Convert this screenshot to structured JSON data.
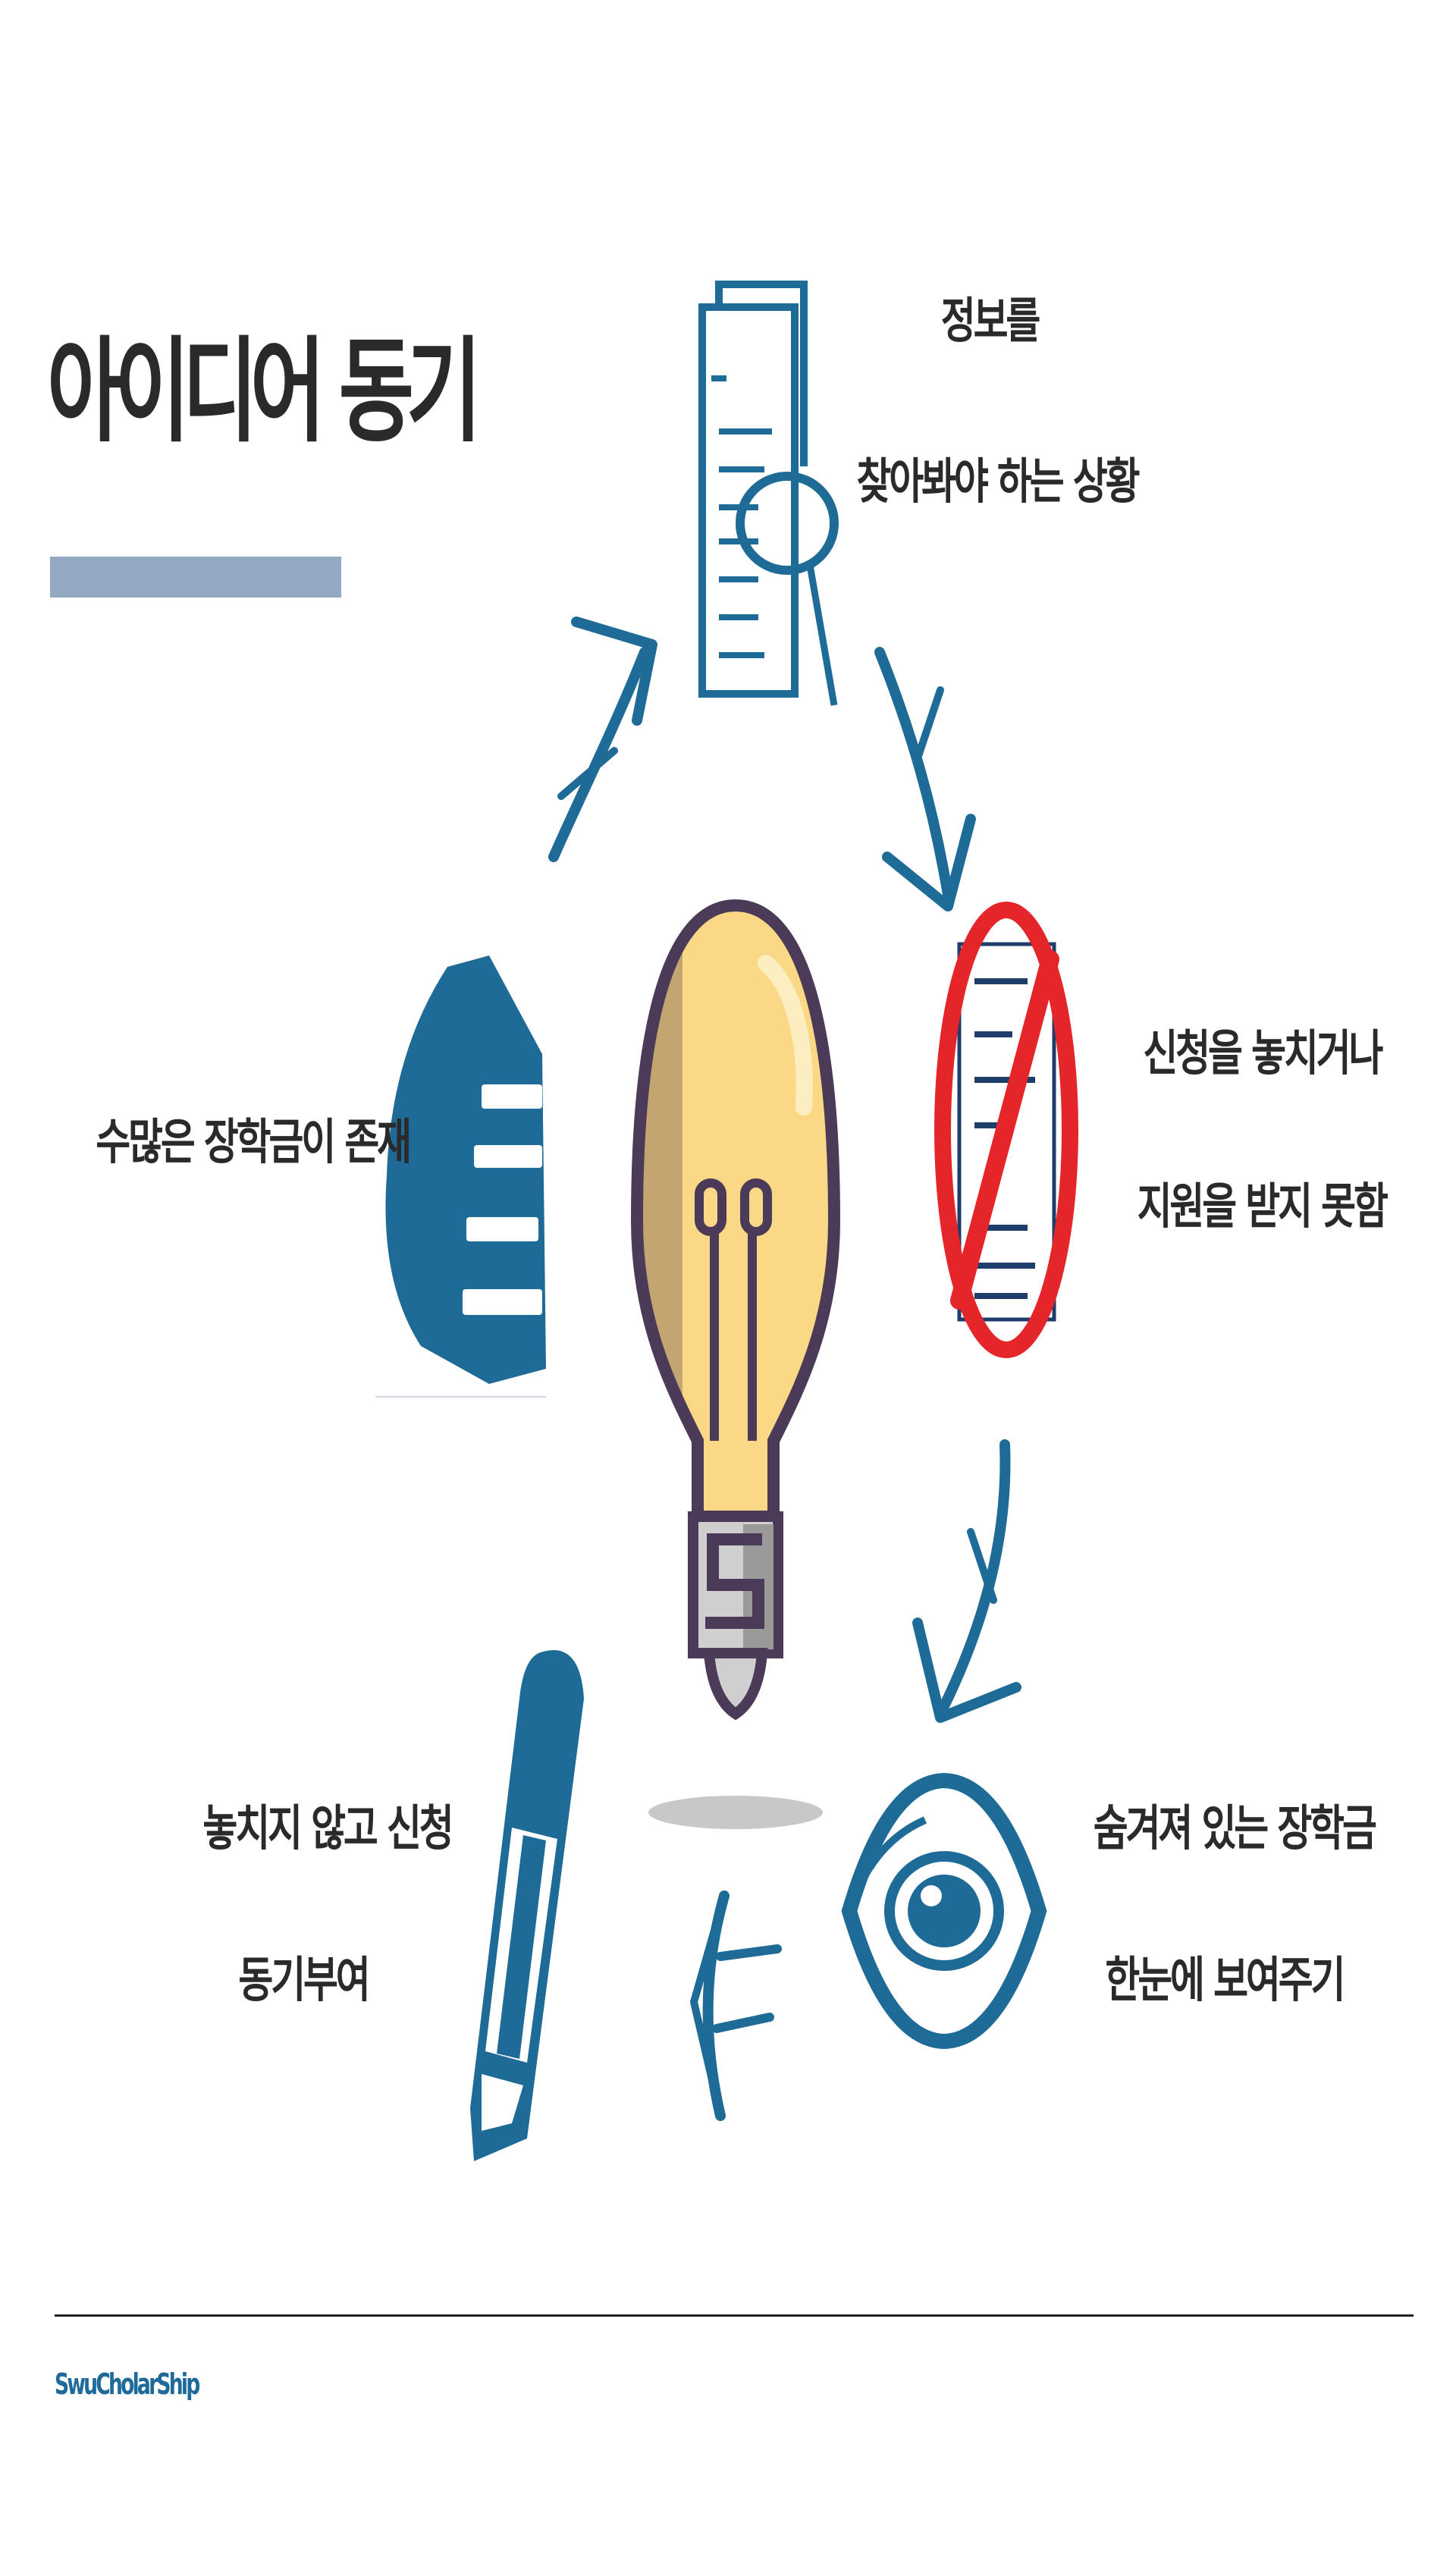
{
  "slide": {
    "title": "아이디어 동기",
    "footer_brand": "SwuCholarShip"
  },
  "cycle": {
    "info_search": {
      "line1": "정보를",
      "line2": "찾아봐야 하는 상황"
    },
    "missed": {
      "line1": "신청을 놓치거나",
      "line2": "지원을 받지 못함"
    },
    "hidden": {
      "line1": "숨겨져 있는 장학금",
      "line2": "한눈에 보여주기"
    },
    "motivate": {
      "line1": "놓치지 않고 신청",
      "line2": "동기부여"
    },
    "many": {
      "line1": "수많은 장학금이 존재"
    }
  },
  "colors": {
    "accent_blue": "#1f6b97",
    "bar": "#93a9c2",
    "bulb_fill": "#fbd886",
    "bulb_outline": "#4b3a58",
    "prohibit_red": "#e42529"
  }
}
